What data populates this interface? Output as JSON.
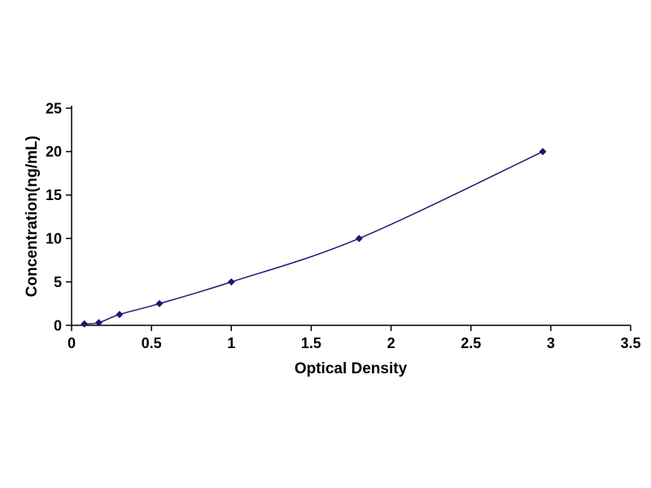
{
  "page": {
    "background": "#ffffff"
  },
  "chart_data": {
    "type": "line",
    "title": "",
    "xlabel": "Optical Density",
    "ylabel": "Concentration(ng/mL)",
    "xlim": [
      0,
      3.5
    ],
    "ylim": [
      0,
      25
    ],
    "x_ticks": [
      0,
      0.5,
      1,
      1.5,
      2,
      2.5,
      3,
      3.5
    ],
    "y_ticks": [
      0,
      5,
      10,
      15,
      20,
      25
    ],
    "grid": false,
    "legend": false,
    "axis_color": "#000000",
    "series": [
      {
        "name": "standard-curve",
        "marker": "diamond",
        "color": "#191970",
        "x": [
          0.08,
          0.17,
          0.3,
          0.55,
          1.0,
          1.8,
          2.95
        ],
        "y": [
          0.16,
          0.31,
          1.25,
          2.5,
          5.0,
          10.0,
          20.0
        ]
      }
    ]
  }
}
